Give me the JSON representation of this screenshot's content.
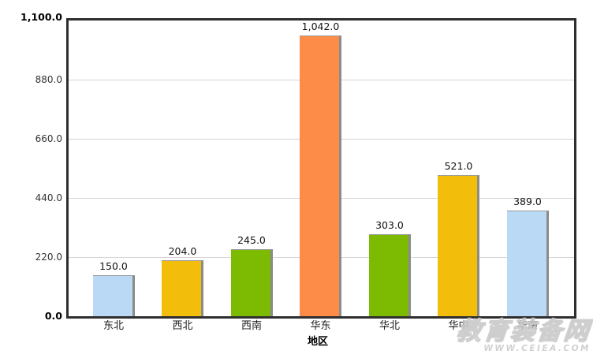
{
  "chart_data": {
    "type": "bar",
    "title": "",
    "xlabel": "地区",
    "ylabel": "",
    "categories": [
      "东北",
      "西北",
      "西南",
      "华东",
      "华北",
      "华中",
      "华南"
    ],
    "values": [
      150.0,
      204.0,
      245.0,
      1042.0,
      303.0,
      521.0,
      389.0
    ],
    "value_labels": [
      "150.0",
      "204.0",
      "245.0",
      "1,042.0",
      "303.0",
      "521.0",
      "389.0"
    ],
    "bar_colors": [
      "#b9d9f5",
      "#f3bd0c",
      "#7cbb02",
      "#fd8c49",
      "#7cbb02",
      "#f3bd0c",
      "#b9d9f5"
    ],
    "ylim": [
      0,
      1100
    ],
    "yticks": [
      {
        "value": 1100,
        "label": "1,100.0",
        "bold": true
      },
      {
        "value": 880,
        "label": "880.0",
        "bold": false
      },
      {
        "value": 660,
        "label": "660.0",
        "bold": false
      },
      {
        "value": 440,
        "label": "440.0",
        "bold": false
      },
      {
        "value": 220,
        "label": "220.0",
        "bold": false
      },
      {
        "value": 0,
        "label": "0.0",
        "bold": true
      }
    ],
    "grid": true,
    "legend": "none"
  },
  "watermark": {
    "site_name": "教育装备网",
    "site_url": "WWW.CEIEA.COM"
  },
  "colors": {
    "background": "#ffffff",
    "frame": "#2f2f2f",
    "gridline": "#d5d5d5",
    "bar_shadow": "#8b8b8b",
    "bar_top_edge": "#9b9b9b",
    "tick_label": "#333333",
    "tick_label_bold": "#000000",
    "value_label": "#111111",
    "category_label": "#1a1a1a",
    "axis_title": "#000000",
    "watermark": "#cccccc"
  }
}
